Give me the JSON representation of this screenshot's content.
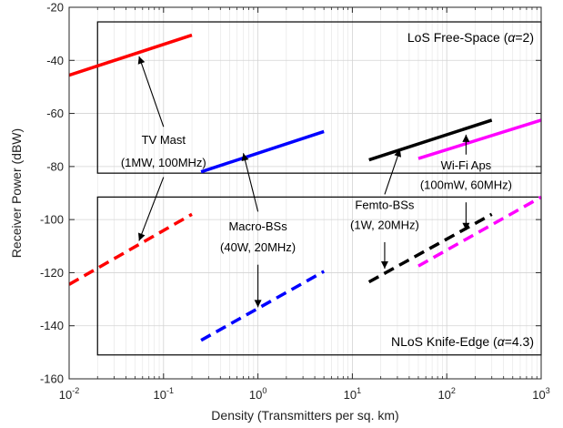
{
  "chart_data": {
    "type": "line",
    "xlabel": "Density (Transmitters per sq. km)",
    "ylabel": "Receiver Power (dBW)",
    "xscale": "log",
    "xlim": [
      0.01,
      1000
    ],
    "ylim": [
      -160,
      -20
    ],
    "grid": true,
    "x_ticks": [
      {
        "base": "10",
        "exp": "-2",
        "value": 0.01
      },
      {
        "base": "10",
        "exp": "-1",
        "value": 0.1
      },
      {
        "base": "10",
        "exp": "0",
        "value": 1
      },
      {
        "base": "10",
        "exp": "1",
        "value": 10
      },
      {
        "base": "10",
        "exp": "2",
        "value": 100
      },
      {
        "base": "10",
        "exp": "3",
        "value": 1000
      }
    ],
    "y_ticks": [
      "-20",
      "-40",
      "-60",
      "-80",
      "-100",
      "-120",
      "-140",
      "-160"
    ],
    "series": [
      {
        "color": "#ff0000",
        "dash": "solid",
        "x": [
          0.01,
          0.2
        ],
        "y": [
          -45.6,
          -30.5
        ]
      },
      {
        "color": "#ff0000",
        "dash": "dashed",
        "x": [
          0.01,
          0.2
        ],
        "y": [
          -124.4,
          -98.0
        ]
      },
      {
        "color": "#0000ff",
        "dash": "solid",
        "x": [
          0.25,
          5.0
        ],
        "y": [
          -82.0,
          -66.8
        ]
      },
      {
        "color": "#0000ff",
        "dash": "dashed",
        "x": [
          0.25,
          5.0
        ],
        "y": [
          -145.5,
          -119.5
        ]
      },
      {
        "color": "#000000",
        "dash": "solid",
        "x": [
          15.0,
          300.0
        ],
        "y": [
          -77.5,
          -62.5
        ]
      },
      {
        "color": "#000000",
        "dash": "dashed",
        "x": [
          15.0,
          300.0
        ],
        "y": [
          -123.5,
          -98.0
        ]
      },
      {
        "color": "#ff00ff",
        "dash": "solid",
        "x": [
          50.0,
          1000.0
        ],
        "y": [
          -77.0,
          -62.5
        ]
      },
      {
        "color": "#ff00ff",
        "dash": "dashed",
        "x": [
          50.0,
          1000.0
        ],
        "y": [
          -117.5,
          -91.5
        ]
      }
    ],
    "regions": [
      {
        "label_pre": "LoS Free-Space (",
        "label_sym": "α",
        "label_post": "=2)",
        "x": [
          0.02,
          1000
        ],
        "y": [
          -82.5,
          -25.5
        ]
      },
      {
        "label_pre": "NLoS Knife-Edge (",
        "label_sym": "α",
        "label_post": "=4.3)",
        "x": [
          0.02,
          1000
        ],
        "y": [
          -151,
          -91.5
        ]
      }
    ],
    "annotations": [
      {
        "lines": [
          "TV Mast",
          "(1MW, 100MHz)"
        ],
        "text_x": 0.1,
        "text_y": [
          -71.5,
          -80.0
        ],
        "arrows": [
          {
            "from": [
              0.1,
              -65.0
            ],
            "to": [
              0.055,
              -38.5
            ]
          },
          {
            "from": [
              0.1,
              -84.0
            ],
            "to": [
              0.055,
              -108.0
            ]
          }
        ]
      },
      {
        "lines": [
          "Macro-BSs",
          "(40W, 20MHz)"
        ],
        "text_x": 1.0,
        "text_y": [
          -104.0,
          -112.0
        ],
        "arrows": [
          {
            "from": [
              1.0,
              -97.0
            ],
            "to": [
              0.7,
              -75.0
            ]
          },
          {
            "from": [
              1.0,
              -117.0
            ],
            "to": [
              1.0,
              -133.0
            ]
          }
        ]
      },
      {
        "lines": [
          "Femto-BSs",
          "(1W, 20MHz)"
        ],
        "text_x": 22.0,
        "text_y": [
          -96.0,
          -103.5
        ],
        "arrows": [
          {
            "from": [
              22.0,
              -90.5
            ],
            "to": [
              32.0,
              -73.5
            ]
          },
          {
            "from": [
              22.0,
              -108.5
            ],
            "to": [
              22.0,
              -118.5
            ]
          }
        ]
      },
      {
        "lines": [
          "Wi-Fi Aps",
          "(100mW, 60MHz)"
        ],
        "text_x": 160.0,
        "text_y": [
          -81.0,
          -88.5
        ],
        "arrows": [
          {
            "from": [
              160.0,
              -75.5
            ],
            "to": [
              160.0,
              -68.0
            ]
          },
          {
            "from": [
              160.0,
              -93.5
            ],
            "to": [
              160.0,
              -104.0
            ]
          }
        ]
      }
    ]
  }
}
